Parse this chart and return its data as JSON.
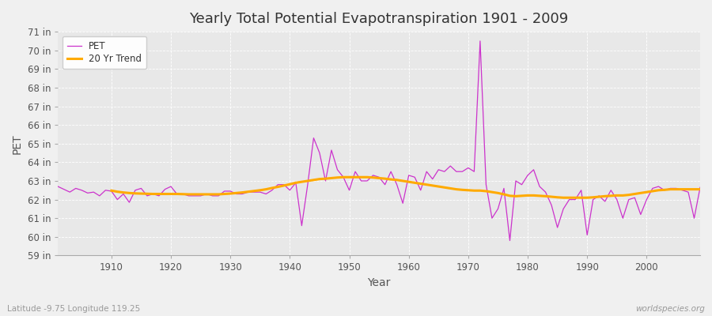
{
  "title": "Yearly Total Potential Evapotranspiration 1901 - 2009",
  "xlabel": "Year",
  "ylabel": "PET",
  "subtitle_left": "Latitude -9.75 Longitude 119.25",
  "subtitle_right": "worldspecies.org",
  "pet_color": "#cc33cc",
  "trend_color": "#ffaa00",
  "bg_color": "#f0f0f0",
  "plot_bg_color": "#e8e8e8",
  "ylim": [
    59,
    71
  ],
  "yticks": [
    59,
    60,
    61,
    62,
    63,
    64,
    65,
    66,
    67,
    68,
    69,
    70,
    71
  ],
  "xlim": [
    1901,
    2009
  ],
  "xticks": [
    1910,
    1920,
    1930,
    1940,
    1950,
    1960,
    1970,
    1980,
    1990,
    2000
  ],
  "years": [
    1901,
    1902,
    1903,
    1904,
    1905,
    1906,
    1907,
    1908,
    1909,
    1910,
    1911,
    1912,
    1913,
    1914,
    1915,
    1916,
    1917,
    1918,
    1919,
    1920,
    1921,
    1922,
    1923,
    1924,
    1925,
    1926,
    1927,
    1928,
    1929,
    1930,
    1931,
    1932,
    1933,
    1934,
    1935,
    1936,
    1937,
    1938,
    1939,
    1940,
    1941,
    1942,
    1943,
    1944,
    1945,
    1946,
    1947,
    1948,
    1949,
    1950,
    1951,
    1952,
    1953,
    1954,
    1955,
    1956,
    1957,
    1958,
    1959,
    1960,
    1961,
    1962,
    1963,
    1964,
    1965,
    1966,
    1967,
    1968,
    1969,
    1970,
    1971,
    1972,
    1973,
    1974,
    1975,
    1976,
    1977,
    1978,
    1979,
    1980,
    1981,
    1982,
    1983,
    1984,
    1985,
    1986,
    1987,
    1988,
    1989,
    1990,
    1991,
    1992,
    1993,
    1994,
    1995,
    1996,
    1997,
    1998,
    1999,
    2000,
    2001,
    2002,
    2003,
    2004,
    2005,
    2006,
    2007,
    2008,
    2009
  ],
  "pet_values": [
    62.7,
    62.55,
    62.4,
    62.6,
    62.5,
    62.35,
    62.4,
    62.2,
    62.5,
    62.45,
    62.0,
    62.3,
    61.85,
    62.5,
    62.6,
    62.2,
    62.3,
    62.2,
    62.55,
    62.7,
    62.3,
    62.3,
    62.2,
    62.2,
    62.2,
    62.3,
    62.2,
    62.2,
    62.45,
    62.45,
    62.3,
    62.3,
    62.4,
    62.4,
    62.4,
    62.3,
    62.5,
    62.8,
    62.8,
    62.5,
    62.9,
    60.6,
    62.8,
    65.3,
    64.5,
    63.0,
    64.65,
    63.6,
    63.2,
    62.5,
    63.5,
    63.0,
    63.0,
    63.3,
    63.2,
    62.8,
    63.5,
    62.8,
    61.8,
    63.3,
    63.2,
    62.5,
    63.5,
    63.1,
    63.6,
    63.5,
    63.8,
    63.5,
    63.5,
    63.7,
    63.5,
    70.5,
    62.8,
    61.0,
    61.5,
    62.6,
    59.8,
    63.0,
    62.8,
    63.3,
    63.6,
    62.7,
    62.4,
    61.7,
    60.5,
    61.5,
    62.0,
    62.0,
    62.5,
    60.1,
    62.0,
    62.2,
    61.9,
    62.5,
    62.0,
    61.0,
    62.0,
    62.1,
    61.2,
    62.0,
    62.6,
    62.7,
    62.5,
    62.6,
    62.6,
    62.5,
    62.4,
    61.0,
    62.65
  ],
  "trend_values": [
    null,
    null,
    null,
    null,
    null,
    null,
    null,
    null,
    null,
    62.48,
    62.42,
    62.38,
    62.35,
    62.33,
    62.32,
    62.31,
    62.3,
    62.3,
    62.3,
    62.3,
    62.3,
    62.29,
    62.28,
    62.28,
    62.28,
    62.28,
    62.28,
    62.28,
    62.3,
    62.32,
    62.35,
    62.38,
    62.42,
    62.46,
    62.5,
    62.55,
    62.62,
    62.68,
    62.75,
    62.82,
    62.9,
    62.95,
    63.0,
    63.05,
    63.1,
    63.12,
    63.15,
    63.18,
    63.2,
    63.2,
    63.2,
    63.2,
    63.2,
    63.18,
    63.15,
    63.12,
    63.08,
    63.05,
    63.0,
    62.95,
    62.9,
    62.85,
    62.8,
    62.75,
    62.7,
    62.65,
    62.6,
    62.55,
    62.52,
    62.5,
    62.48,
    62.48,
    62.45,
    62.4,
    62.35,
    62.28,
    62.2,
    62.18,
    62.2,
    62.22,
    62.22,
    62.2,
    62.18,
    62.15,
    62.12,
    62.1,
    62.1,
    62.1,
    62.1,
    62.1,
    62.12,
    62.15,
    62.18,
    62.2,
    62.22,
    62.22,
    62.25,
    62.3,
    62.35,
    62.4,
    62.45,
    62.5,
    62.52,
    62.55,
    62.55,
    62.55,
    62.55,
    62.55,
    62.55
  ]
}
